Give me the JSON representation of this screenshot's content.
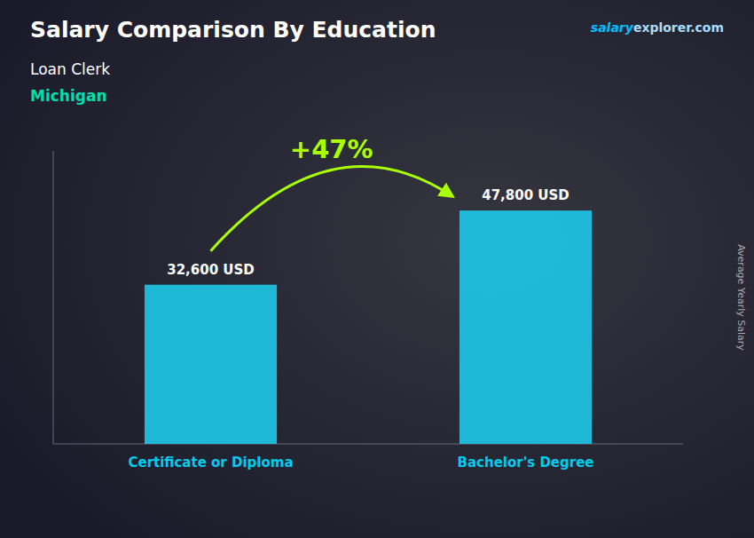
{
  "chart_data": {
    "type": "bar",
    "title": "Salary Comparison By Education",
    "subtitle": [
      "Loan Clerk",
      "Michigan"
    ],
    "ylabel": "Average Yearly Salary",
    "annotations": [
      "+47%",
      "salary",
      "explorer.com"
    ],
    "categories": [
      "Certificate or Diploma",
      "Bachelor's Degree"
    ],
    "values": [
      32600,
      47800
    ],
    "value_labels": [
      "32,600 USD",
      "47,800 USD"
    ],
    "data_labels": true,
    "color": "#1EC8E8",
    "ylim": [
      0,
      60000
    ],
    "tick_labels": "x",
    "grid": false
  }
}
